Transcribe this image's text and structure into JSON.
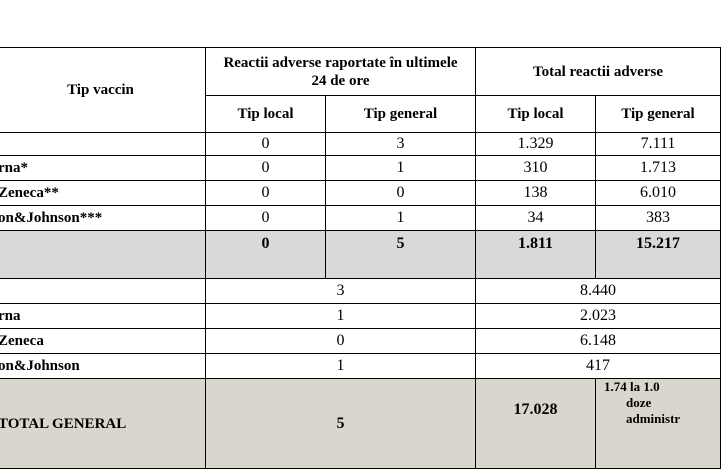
{
  "table": {
    "header": {
      "col0": "Tip vaccin",
      "group1": "Reactii adverse raportate în ultimele 24 de ore",
      "group2": "Total reactii adverse",
      "sub": [
        "Tip local",
        "Tip general",
        "Tip local",
        "Tip general"
      ]
    },
    "rows": [
      [
        "",
        "0",
        "3",
        "1.329",
        "7.111"
      ],
      [
        "rna*",
        "0",
        "1",
        "310",
        "1.713"
      ],
      [
        "Zeneca**",
        "0",
        "0",
        "138",
        "6.010"
      ],
      [
        "on&Johnson***",
        "0",
        "1",
        "34",
        "383"
      ]
    ],
    "total": [
      "0",
      "5",
      "1.811",
      "15.217"
    ],
    "rows2": [
      [
        "",
        "3",
        "8.440"
      ],
      [
        "rna",
        "1",
        "2.023"
      ],
      [
        "Zeneca",
        "0",
        "6.148"
      ],
      [
        "on&Johnson",
        "1",
        "417"
      ]
    ],
    "grand": {
      "label": "TOTAL GENERAL",
      "values": [
        "5",
        "17.028"
      ],
      "note": [
        "1.74 la 1.0",
        "doze",
        "administr"
      ]
    }
  }
}
